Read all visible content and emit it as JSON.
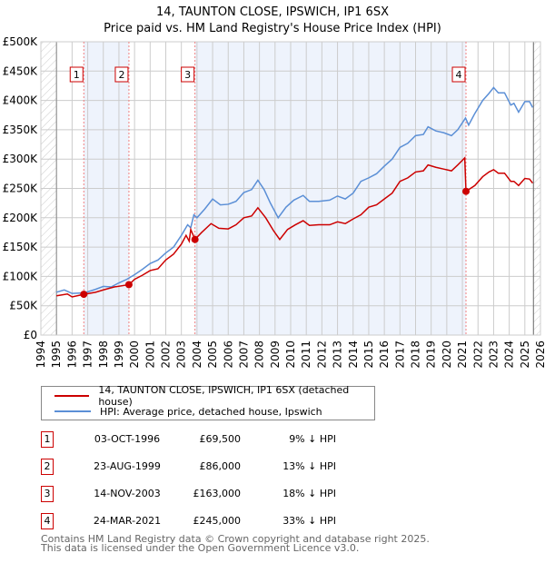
{
  "chart_data": {
    "type": "line",
    "title": "14, TAUNTON CLOSE, IPSWICH, IP1 6SX",
    "subtitle": "Price paid vs. HM Land Registry's House Price Index (HPI)",
    "xlim": [
      1994,
      2026
    ],
    "ylim": [
      0,
      500000
    ],
    "x_ticks": [
      "1994",
      "1995",
      "1996",
      "1997",
      "1998",
      "1999",
      "2000",
      "2001",
      "2002",
      "2003",
      "2004",
      "2005",
      "2006",
      "2007",
      "2008",
      "2009",
      "2010",
      "2011",
      "2012",
      "2013",
      "2014",
      "2015",
      "2016",
      "2017",
      "2018",
      "2019",
      "2020",
      "2021",
      "2022",
      "2023",
      "2024",
      "2025",
      "2026"
    ],
    "y_ticks": [
      "£0",
      "£50K",
      "£100K",
      "£150K",
      "£200K",
      "£250K",
      "£300K",
      "£350K",
      "£400K",
      "£450K",
      "£500K"
    ],
    "grid": true,
    "series": [
      {
        "name": "14, TAUNTON CLOSE, IPSWICH, IP1 6SX (detached house)",
        "color": "#cc0000",
        "points": [
          [
            1995,
            67
          ],
          [
            1995.7,
            70
          ],
          [
            1996,
            65
          ],
          [
            1996.75,
            69.5
          ],
          [
            1997.5,
            73
          ],
          [
            1998,
            77
          ],
          [
            1998.7,
            82
          ],
          [
            1999.64,
            86
          ],
          [
            2000,
            95
          ],
          [
            2000.5,
            102
          ],
          [
            2001,
            110
          ],
          [
            2001.5,
            113
          ],
          [
            2002,
            128
          ],
          [
            2002.5,
            138
          ],
          [
            2003,
            155
          ],
          [
            2003.3,
            170
          ],
          [
            2003.5,
            160
          ],
          [
            2003.6,
            180
          ],
          [
            2003.87,
            163
          ],
          [
            2004.3,
            175
          ],
          [
            2004.9,
            190
          ],
          [
            2005.4,
            182
          ],
          [
            2006,
            181
          ],
          [
            2006.5,
            188
          ],
          [
            2007,
            200
          ],
          [
            2007.5,
            203
          ],
          [
            2007.9,
            217
          ],
          [
            2008.4,
            200
          ],
          [
            2008.9,
            178
          ],
          [
            2009.3,
            163
          ],
          [
            2009.8,
            180
          ],
          [
            2010.3,
            188
          ],
          [
            2010.8,
            195
          ],
          [
            2011.2,
            187
          ],
          [
            2011.8,
            188
          ],
          [
            2012.5,
            188
          ],
          [
            2013,
            193
          ],
          [
            2013.5,
            190
          ],
          [
            2014,
            198
          ],
          [
            2014.5,
            205
          ],
          [
            2015,
            218
          ],
          [
            2015.5,
            222
          ],
          [
            2016,
            232
          ],
          [
            2016.5,
            242
          ],
          [
            2017,
            262
          ],
          [
            2017.5,
            268
          ],
          [
            2018,
            278
          ],
          [
            2018.5,
            280
          ],
          [
            2018.8,
            290
          ],
          [
            2019.3,
            286
          ],
          [
            2019.8,
            283
          ],
          [
            2020.3,
            280
          ],
          [
            2020.7,
            290
          ],
          [
            2021.15,
            302
          ],
          [
            2021.23,
            245
          ],
          [
            2021.8,
            255
          ],
          [
            2022.3,
            270
          ],
          [
            2022.7,
            278
          ],
          [
            2023,
            282
          ],
          [
            2023.3,
            276
          ],
          [
            2023.7,
            276
          ],
          [
            2024.1,
            262
          ],
          [
            2024.3,
            262
          ],
          [
            2024.6,
            255
          ],
          [
            2025,
            267
          ],
          [
            2025.3,
            266
          ],
          [
            2025.5,
            259
          ]
        ]
      },
      {
        "name": "HPI: Average price, detached house, Ipswich",
        "color": "#5b8fd6",
        "points": [
          [
            1995,
            73
          ],
          [
            1995.5,
            77
          ],
          [
            1996,
            71
          ],
          [
            1996.8,
            72
          ],
          [
            1997.5,
            78
          ],
          [
            1998,
            83
          ],
          [
            1998.5,
            82
          ],
          [
            1999,
            89
          ],
          [
            1999.5,
            95
          ],
          [
            2000,
            103
          ],
          [
            2000.5,
            112
          ],
          [
            2001,
            122
          ],
          [
            2001.5,
            128
          ],
          [
            2002,
            140
          ],
          [
            2002.5,
            150
          ],
          [
            2003,
            170
          ],
          [
            2003.4,
            188
          ],
          [
            2003.6,
            183
          ],
          [
            2003.8,
            205
          ],
          [
            2004,
            200
          ],
          [
            2004.5,
            215
          ],
          [
            2005,
            232
          ],
          [
            2005.5,
            222
          ],
          [
            2006,
            223
          ],
          [
            2006.5,
            228
          ],
          [
            2007,
            243
          ],
          [
            2007.5,
            248
          ],
          [
            2007.9,
            264
          ],
          [
            2008.3,
            248
          ],
          [
            2008.7,
            225
          ],
          [
            2009.2,
            200
          ],
          [
            2009.7,
            218
          ],
          [
            2010.2,
            230
          ],
          [
            2010.8,
            238
          ],
          [
            2011.2,
            228
          ],
          [
            2011.8,
            228
          ],
          [
            2012.5,
            230
          ],
          [
            2013,
            237
          ],
          [
            2013.5,
            232
          ],
          [
            2014,
            242
          ],
          [
            2014.5,
            262
          ],
          [
            2015,
            268
          ],
          [
            2015.5,
            275
          ],
          [
            2016,
            288
          ],
          [
            2016.5,
            300
          ],
          [
            2017,
            320
          ],
          [
            2017.5,
            327
          ],
          [
            2018,
            340
          ],
          [
            2018.5,
            342
          ],
          [
            2018.8,
            355
          ],
          [
            2019.3,
            348
          ],
          [
            2019.8,
            345
          ],
          [
            2020.3,
            340
          ],
          [
            2020.7,
            350
          ],
          [
            2021.2,
            370
          ],
          [
            2021.4,
            358
          ],
          [
            2021.8,
            378
          ],
          [
            2022.3,
            400
          ],
          [
            2022.7,
            412
          ],
          [
            2023,
            422
          ],
          [
            2023.3,
            413
          ],
          [
            2023.7,
            413
          ],
          [
            2024.1,
            392
          ],
          [
            2024.3,
            395
          ],
          [
            2024.6,
            380
          ],
          [
            2025,
            398
          ],
          [
            2025.3,
            398
          ],
          [
            2025.5,
            388
          ]
        ]
      }
    ],
    "sales": [
      {
        "id": "1",
        "x": 1996.75,
        "value": 69500
      },
      {
        "id": "2",
        "x": 1999.64,
        "value": 86000
      },
      {
        "id": "3",
        "x": 2003.87,
        "value": 163000
      },
      {
        "id": "4",
        "x": 2021.23,
        "value": 245000
      }
    ],
    "legend": "below"
  },
  "legend": {
    "red": "14, TAUNTON CLOSE, IPSWICH, IP1 6SX (detached house)",
    "blue": "HPI: Average price, detached house, Ipswich"
  },
  "transactions": [
    {
      "num": "1",
      "date": "03-OCT-1996",
      "price": "£69,500",
      "hpi": "9% ↓ HPI"
    },
    {
      "num": "2",
      "date": "23-AUG-1999",
      "price": "£86,000",
      "hpi": "13% ↓ HPI"
    },
    {
      "num": "3",
      "date": "14-NOV-2003",
      "price": "£163,000",
      "hpi": "18% ↓ HPI"
    },
    {
      "num": "4",
      "date": "24-MAR-2021",
      "price": "£245,000",
      "hpi": "33% ↓ HPI"
    }
  ],
  "footer": {
    "line1": "Contains HM Land Registry data © Crown copyright and database right 2025.",
    "line2": "This data is licensed under the Open Government Licence v3.0."
  }
}
